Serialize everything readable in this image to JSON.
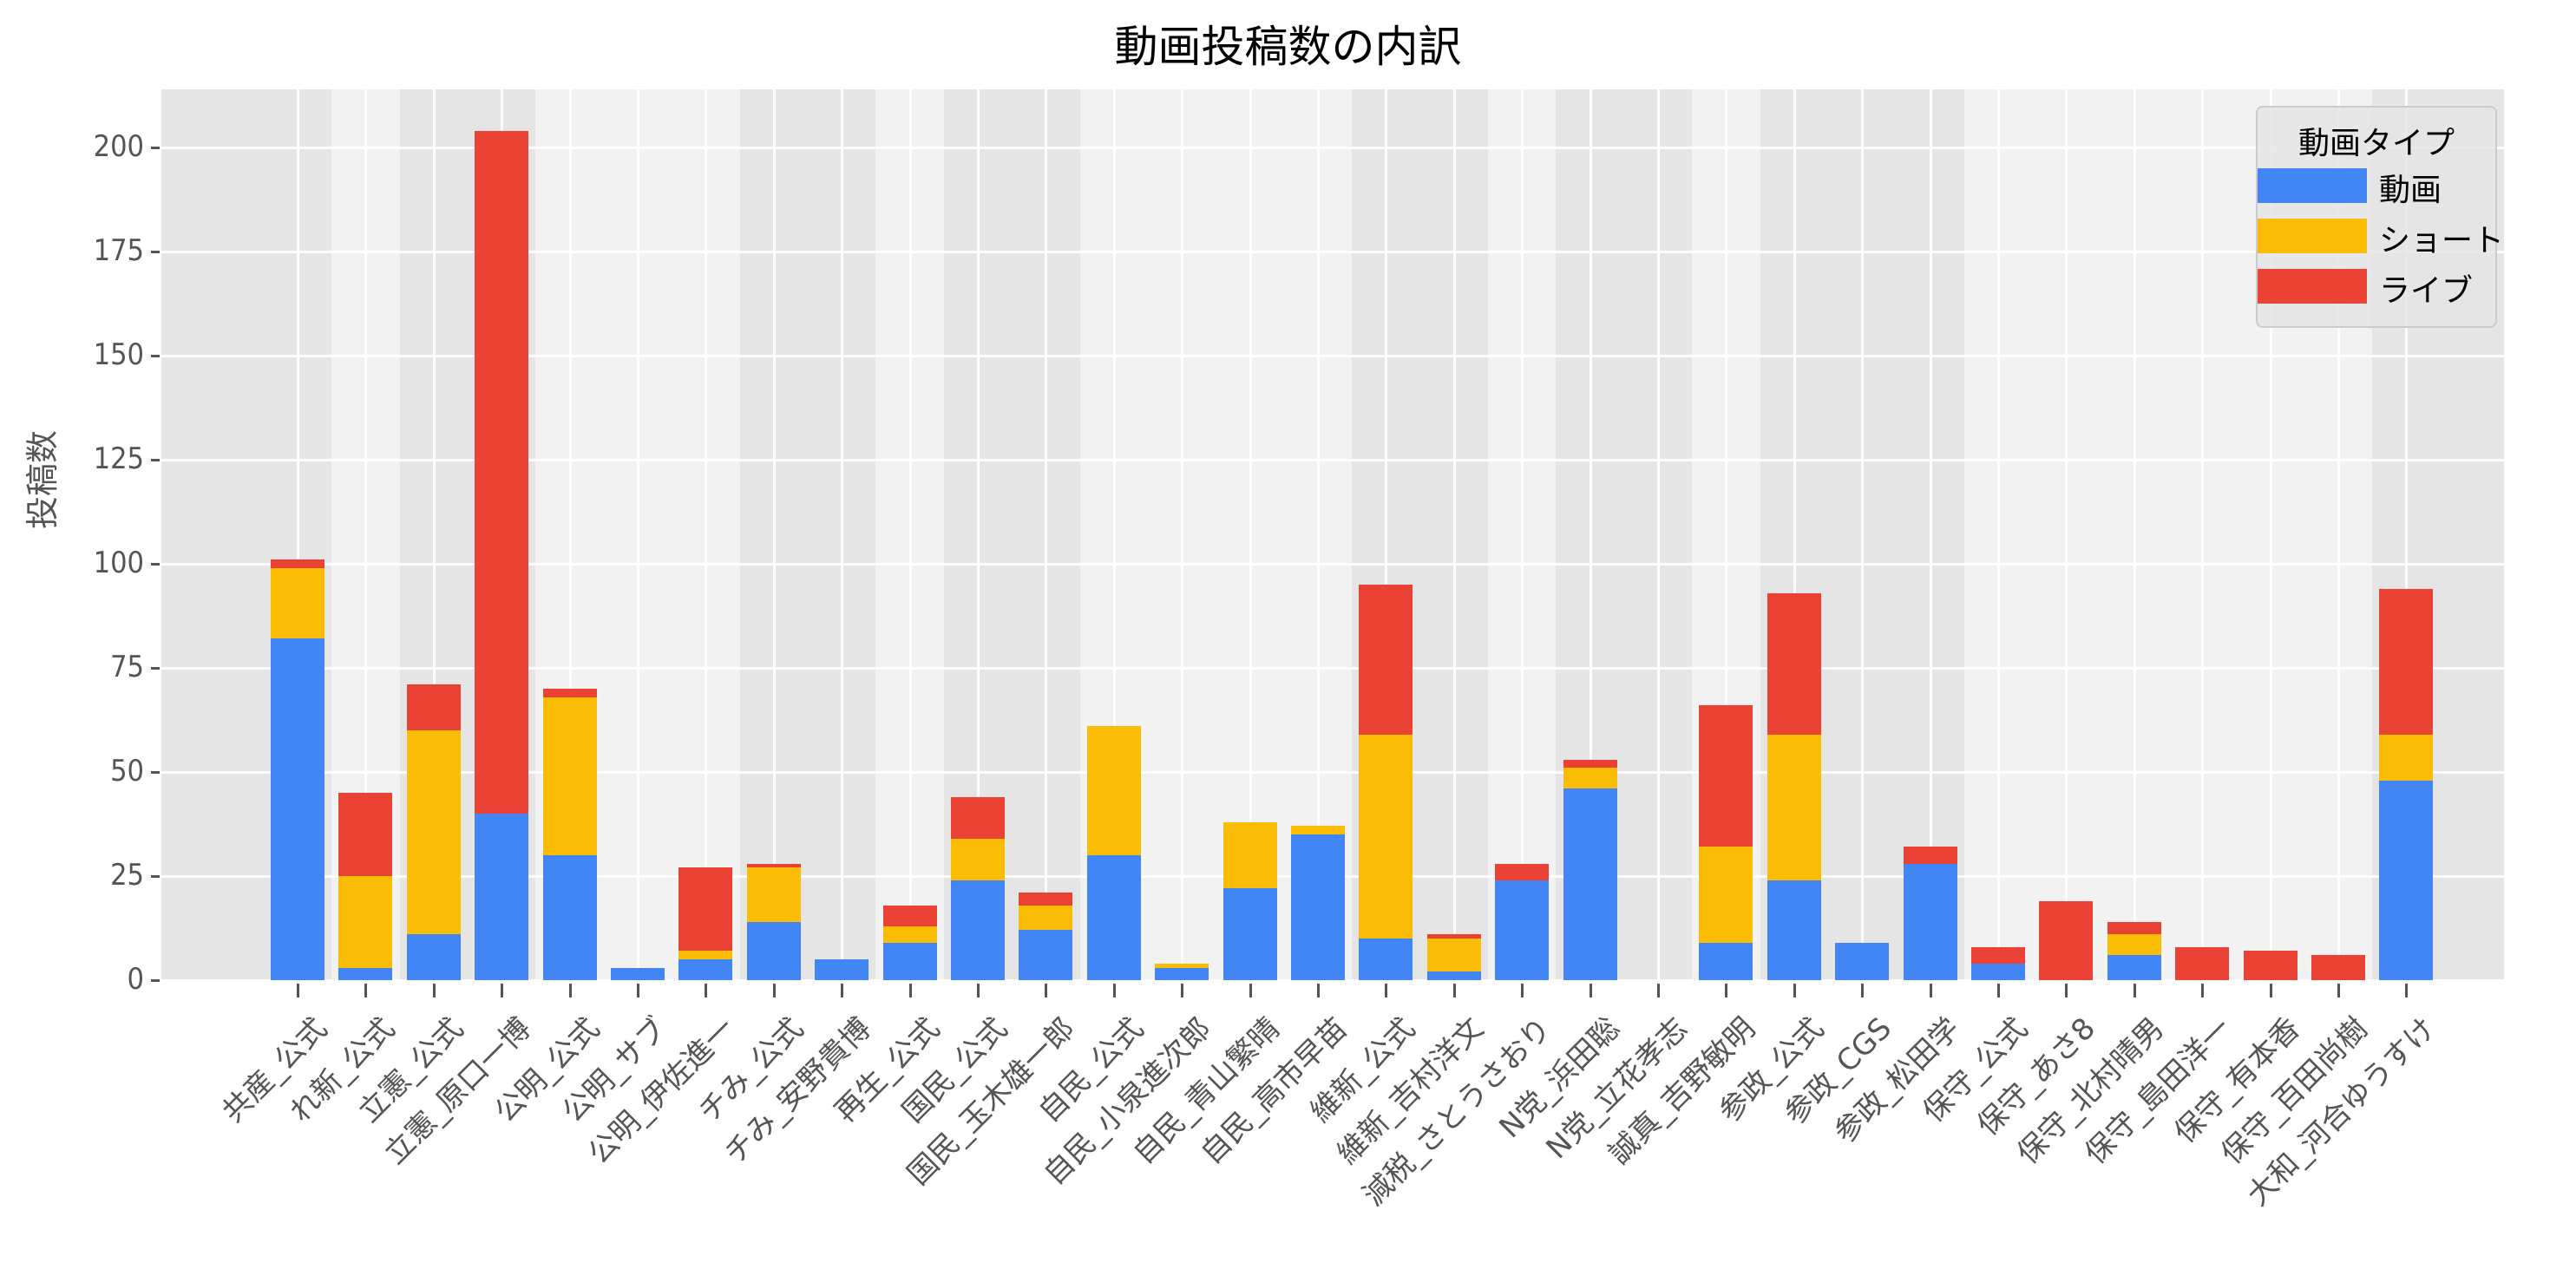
{
  "title": "動画投稿数の内訳",
  "colors": {
    "douga": "#4285f4",
    "short": "#fbbc05",
    "live": "#ea4335",
    "panel_dark": "#e5e5e5",
    "panel_light": "#f2f2f2"
  },
  "legend": {
    "title": "動画タイプ",
    "items": [
      "動画",
      "ショート",
      "ライブ"
    ]
  },
  "chart_data": {
    "type": "bar",
    "stacked": true,
    "title": "動画投稿数の内訳",
    "xlabel": "",
    "ylabel": "投稿数",
    "ylim": [
      0,
      214
    ],
    "yticks": [
      0,
      25,
      50,
      75,
      100,
      125,
      150,
      175,
      200
    ],
    "grid": true,
    "legend_position": "upper right",
    "legend_title": "動画タイプ",
    "categories": [
      "共産_公式",
      "れ新_公式",
      "立憲_公式",
      "立憲_原口一博",
      "公明_公式",
      "公明_サブ",
      "公明_伊佐進一",
      "チみ_公式",
      "チみ_安野貴博",
      "再生_公式",
      "国民_公式",
      "国民_玉木雄一郎",
      "自民_公式",
      "自民_小泉進次郎",
      "自民_青山繁晴",
      "自民_高市早苗",
      "維新_公式",
      "維新_吉村洋文",
      "減税_さとうさおり",
      "N党_浜田聡",
      "N党_立花孝志",
      "誠真_吉野敏明",
      "参政_公式",
      "参政_CGS",
      "参政_松田学",
      "保守_公式",
      "保守_あさ8",
      "保守_北村晴男",
      "保守_島田洋一",
      "保守_有本香",
      "保守_百田尚樹",
      "大和_河合ゆうすけ"
    ],
    "series": [
      {
        "name": "動画",
        "color": "#4285f4",
        "values": [
          82,
          3,
          11,
          40,
          30,
          3,
          5,
          14,
          5,
          9,
          24,
          12,
          30,
          3,
          22,
          35,
          10,
          2,
          24,
          46,
          0,
          9,
          24,
          9,
          28,
          4,
          0,
          6,
          0,
          0,
          0,
          48
        ]
      },
      {
        "name": "ショート",
        "color": "#fbbc05",
        "values": [
          17,
          22,
          49,
          0,
          38,
          0,
          2,
          13,
          0,
          4,
          10,
          6,
          31,
          1,
          16,
          2,
          49,
          8,
          0,
          5,
          0,
          23,
          35,
          0,
          0,
          0,
          0,
          5,
          0,
          0,
          0,
          11
        ]
      },
      {
        "name": "ライブ",
        "color": "#ea4335",
        "values": [
          2,
          20,
          11,
          164,
          2,
          0,
          20,
          1,
          0,
          5,
          10,
          3,
          0,
          0,
          0,
          0,
          36,
          1,
          4,
          2,
          0,
          34,
          34,
          0,
          4,
          4,
          19,
          3,
          8,
          7,
          6,
          35
        ]
      }
    ],
    "background_bands": [
      {
        "from": 0,
        "to": 0,
        "shade": "dark"
      },
      {
        "from": 1,
        "to": 1,
        "shade": "light"
      },
      {
        "from": 2,
        "to": 3,
        "shade": "dark"
      },
      {
        "from": 4,
        "to": 6,
        "shade": "light"
      },
      {
        "from": 7,
        "to": 8,
        "shade": "dark"
      },
      {
        "from": 9,
        "to": 9,
        "shade": "light"
      },
      {
        "from": 10,
        "to": 11,
        "shade": "dark"
      },
      {
        "from": 12,
        "to": 15,
        "shade": "light"
      },
      {
        "from": 16,
        "to": 17,
        "shade": "dark"
      },
      {
        "from": 18,
        "to": 18,
        "shade": "light"
      },
      {
        "from": 19,
        "to": 20,
        "shade": "dark"
      },
      {
        "from": 21,
        "to": 21,
        "shade": "light"
      },
      {
        "from": 22,
        "to": 24,
        "shade": "dark"
      },
      {
        "from": 25,
        "to": 30,
        "shade": "light"
      },
      {
        "from": 31,
        "to": 31,
        "shade": "dark"
      }
    ]
  }
}
